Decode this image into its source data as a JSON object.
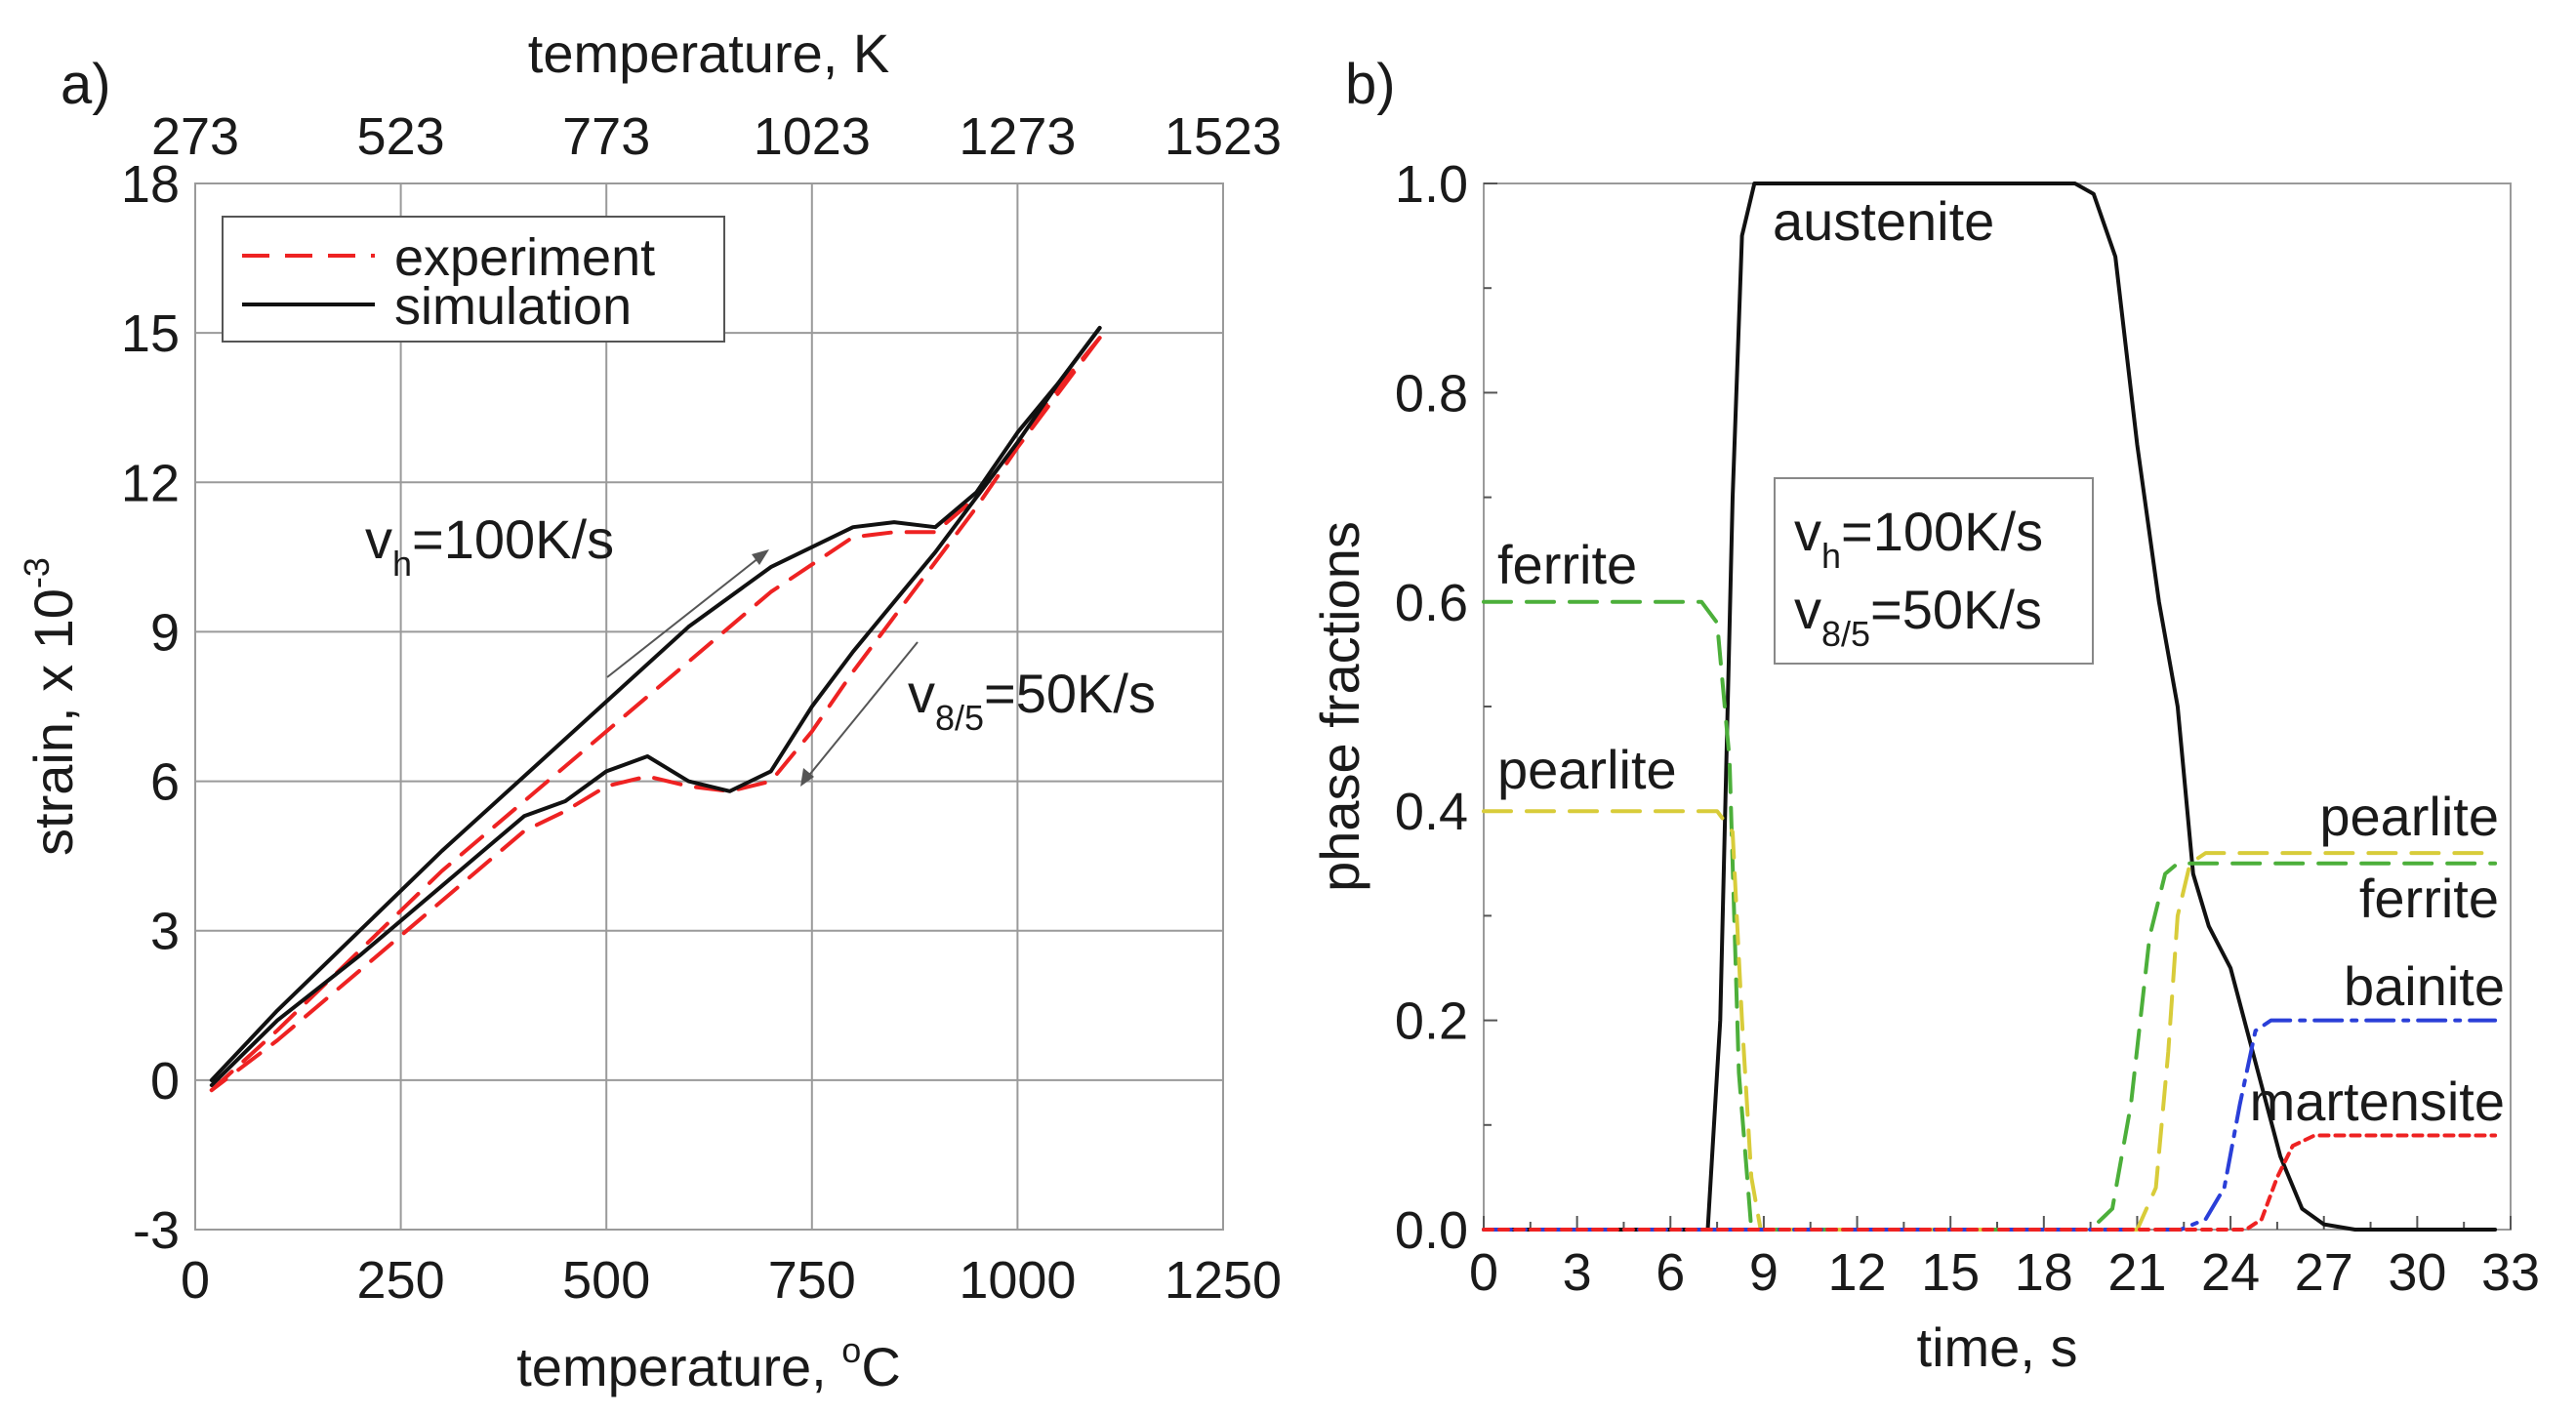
{
  "chart_data": [
    {
      "panel": "a)",
      "type": "line",
      "xlabel": "temperature, ",
      "xlabel_sup": "o",
      "xlabel_unit": "C",
      "top_xlabel": "temperature, K",
      "ylabel": "strain, x 10",
      "ylabel_sup": "-3",
      "xlim": [
        0,
        1250
      ],
      "ylim": [
        -3,
        18
      ],
      "xticks": [
        "0",
        "250",
        "500",
        "750",
        "1000",
        "1250"
      ],
      "top_xticks": [
        "273",
        "523",
        "773",
        "1023",
        "1273",
        "1523"
      ],
      "yticks": [
        "-3",
        "0",
        "3",
        "6",
        "9",
        "12",
        "15",
        "18"
      ],
      "grid": true,
      "legend": {
        "position": "top-left",
        "entries": [
          "experiment",
          "simulation"
        ]
      },
      "annotations": {
        "heating": {
          "main": "v",
          "sub": "h",
          "tail": "=100K/s"
        },
        "cooling": {
          "main": "v",
          "sub": "8/5",
          "tail": "=50K/s"
        }
      },
      "series": [
        {
          "name": "simulation",
          "color": "#111111",
          "dash": "solid",
          "x": [
            20,
            100,
            200,
            300,
            400,
            500,
            600,
            700,
            800,
            850,
            900,
            950,
            1000,
            1050,
            1100
          ],
          "y": [
            0,
            1.4,
            3.0,
            4.6,
            6.1,
            7.6,
            9.1,
            10.3,
            11.1,
            11.2,
            11.1,
            11.8,
            13.0,
            14.0,
            15.1
          ]
        },
        {
          "name": "simulation",
          "color": "#111111",
          "dash": "solid",
          "x": [
            1100,
            1050,
            1000,
            950,
            900,
            850,
            800,
            750,
            700,
            650,
            600,
            550,
            500,
            450,
            400,
            300,
            200,
            100,
            20
          ],
          "y": [
            15.1,
            14.0,
            12.8,
            11.7,
            10.6,
            9.6,
            8.6,
            7.5,
            6.2,
            5.8,
            6.0,
            6.5,
            6.2,
            5.6,
            5.3,
            3.9,
            2.5,
            1.2,
            -0.1
          ]
        },
        {
          "name": "experiment",
          "color": "#ee2222",
          "dash": "dashed",
          "x": [
            20,
            100,
            200,
            300,
            400,
            500,
            600,
            700,
            800,
            850,
            900,
            950,
            1000,
            1050,
            1100
          ],
          "y": [
            -0.2,
            1.0,
            2.6,
            4.2,
            5.6,
            7.0,
            8.4,
            9.8,
            10.9,
            11.0,
            11.0,
            11.7,
            12.8,
            13.9,
            14.9
          ]
        },
        {
          "name": "experiment",
          "color": "#ee2222",
          "dash": "dashed",
          "x": [
            1100,
            1050,
            1000,
            950,
            900,
            850,
            800,
            750,
            700,
            650,
            600,
            550,
            500,
            450,
            400,
            300,
            200,
            100,
            20
          ],
          "y": [
            14.9,
            13.8,
            12.7,
            11.5,
            10.4,
            9.3,
            8.2,
            7.0,
            6.0,
            5.8,
            5.9,
            6.1,
            5.9,
            5.4,
            5.0,
            3.6,
            2.2,
            0.8,
            -0.2
          ]
        }
      ]
    },
    {
      "panel": "b)",
      "type": "line",
      "xlabel": "time, s",
      "ylabel": "phase fractions",
      "xlim": [
        0,
        33
      ],
      "ylim": [
        0,
        1
      ],
      "xticks": [
        "0",
        "3",
        "6",
        "9",
        "12",
        "15",
        "18",
        "21",
        "24",
        "27",
        "30",
        "33"
      ],
      "yticks": [
        "0.0",
        "0.2",
        "0.4",
        "0.6",
        "0.8",
        "1.0"
      ],
      "grid": false,
      "info_box": {
        "line1": {
          "main": "v",
          "sub": "h",
          "tail": "=100K/s"
        },
        "line2": {
          "main": "v",
          "sub": "8/5",
          "tail": "=50K/s"
        }
      },
      "labels": {
        "austenite": "austenite",
        "ferrite_start": "ferrite",
        "pearlite_start": "pearlite",
        "pearlite_end": "pearlite",
        "ferrite_end": "ferrite",
        "bainite": "bainite",
        "martensite": "martensite"
      },
      "series": [
        {
          "name": "austenite",
          "color": "#111111",
          "dash": "solid",
          "x": [
            0,
            7.2,
            7.6,
            8.0,
            8.3,
            8.7,
            19.0,
            19.6,
            20.3,
            21.0,
            21.7,
            22.3,
            22.8,
            23.3,
            24.0,
            24.8,
            25.6,
            26.3,
            27.0,
            28.0,
            32.5
          ],
          "y": [
            0,
            0,
            0.2,
            0.7,
            0.95,
            1.0,
            1.0,
            0.99,
            0.93,
            0.75,
            0.6,
            0.5,
            0.34,
            0.29,
            0.25,
            0.16,
            0.07,
            0.02,
            0.005,
            0,
            0
          ]
        },
        {
          "name": "ferrite",
          "color": "#4caf3a",
          "dash": "dashed",
          "x": [
            0,
            7.0,
            7.5,
            7.9,
            8.2,
            8.6,
            19.5,
            20.2,
            20.8,
            21.4,
            21.9,
            22.3,
            32.5
          ],
          "y": [
            0.6,
            0.6,
            0.58,
            0.45,
            0.15,
            0,
            0,
            0.02,
            0.12,
            0.28,
            0.34,
            0.35,
            0.35
          ]
        },
        {
          "name": "pearlite",
          "color": "#d8cc3a",
          "dash": "dashed",
          "x": [
            0,
            7.5,
            8.0,
            8.3,
            8.6,
            8.9,
            21.0,
            21.6,
            22.0,
            22.3,
            22.7,
            23.2,
            32.5
          ],
          "y": [
            0.4,
            0.4,
            0.38,
            0.2,
            0.05,
            0,
            0,
            0.04,
            0.17,
            0.3,
            0.35,
            0.36,
            0.36
          ]
        },
        {
          "name": "bainite",
          "color": "#2a3fd8",
          "dash": "dashdot",
          "x": [
            0,
            22.4,
            23.2,
            23.8,
            24.3,
            24.8,
            25.3,
            32.5
          ],
          "y": [
            0,
            0,
            0.01,
            0.04,
            0.12,
            0.19,
            0.2,
            0.2
          ]
        },
        {
          "name": "martensite",
          "color": "#ee2222",
          "dash": "dotted",
          "x": [
            0,
            24.5,
            25.0,
            25.5,
            26.0,
            26.7,
            32.5
          ],
          "y": [
            0,
            0,
            0.01,
            0.05,
            0.08,
            0.09,
            0.09
          ]
        }
      ]
    }
  ]
}
